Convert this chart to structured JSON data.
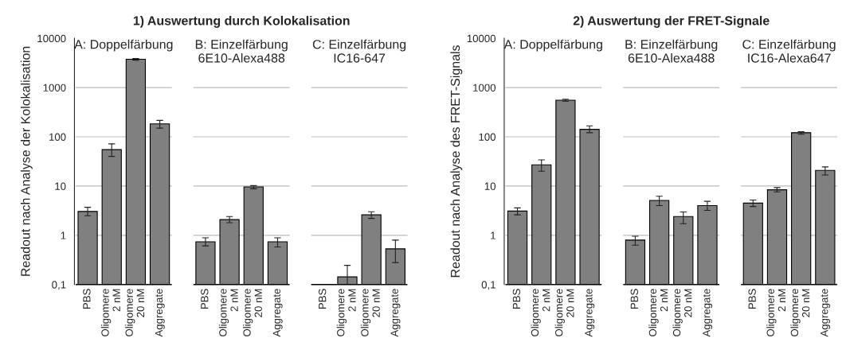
{
  "chart_data": [
    {
      "type": "bar",
      "title": "1) Auswertung durch Kolokalisation",
      "ylabel": "Readout nach Analyse der Kolokalisation",
      "categories": [
        "PBS",
        "Oligomere\n2 nM",
        "Oligomere\n20 nM",
        "Aggregate",
        "PBS",
        "Oligomere\n2 nM",
        "Oligomere\n20 nM",
        "Aggregate",
        "PBS",
        "Oligomere\n2 nM",
        "Oligomere\n20 nM",
        "Aggregate"
      ],
      "series": [
        {
          "color": "#808080",
          "values": [
            3.05,
            55,
            3760,
            183,
            0.74,
            2.08,
            9.6,
            0.74,
            null,
            0.143,
            2.6,
            0.53
          ],
          "errors": [
            [
              2.5,
              3.7
            ],
            [
              40,
              72
            ],
            [
              3600,
              3900
            ],
            [
              150,
              215
            ],
            [
              0.61,
              0.89
            ],
            [
              1.8,
              2.4
            ],
            [
              8.8,
              10.2
            ],
            [
              0.58,
              0.89
            ],
            null,
            [
              0.1,
              0.245
            ],
            [
              2.2,
              3.0
            ],
            [
              0.28,
              0.8
            ]
          ]
        }
      ],
      "annotations": [
        "A: Doppelfärbung",
        "B: Einzelfärbung\n6E10-Alexa488",
        "C: Einzelfärbung\nIC16-647"
      ],
      "log": "y",
      "ylim": [
        0.1,
        10000
      ],
      "yticks": [
        {
          "value": 0.1,
          "label": "0,1"
        },
        1,
        10,
        100,
        1000,
        10000
      ],
      "grid": "y",
      "legend": false
    },
    {
      "type": "bar",
      "title": "2) Auswertung der FRET-Signale",
      "ylabel": "Readout nach Analyse des FRET-Signals",
      "categories": [
        "PBS",
        "Oligomere\n2 nM",
        "Oligomere\n20 nM",
        "Aggregate",
        "PBS",
        "Oligomere\n2 nM",
        "Oligomere\n20 nM",
        "Aggregate",
        "PBS",
        "Oligomere\n2 nM",
        "Oligomere\n20 nM",
        "Aggregate"
      ],
      "series": [
        {
          "color": "#808080",
          "values": [
            3.1,
            27,
            552,
            142,
            0.8,
            5.1,
            2.4,
            4.0,
            4.5,
            8.4,
            121,
            20.8
          ],
          "errors": [
            [
              2.6,
              3.6
            ],
            [
              20,
              34
            ],
            [
              530,
              580
            ],
            [
              121,
              167
            ],
            [
              0.63,
              0.96
            ],
            [
              4.0,
              6.2
            ],
            [
              1.72,
              2.97
            ],
            [
              3.2,
              4.9
            ],
            [
              3.85,
              5.2
            ],
            [
              7.6,
              9.3
            ],
            [
              113,
              127
            ],
            [
              16.8,
              24.5
            ]
          ]
        }
      ],
      "annotations": [
        "A: Doppelfärbung",
        "B: Einzelfärbung\n6E10-Alexa488",
        "C: Einzelfärbung\nIC16-Alexa647"
      ],
      "log": "y",
      "ylim": [
        0.1,
        10000
      ],
      "yticks": [
        {
          "value": 0.1,
          "label": "0,1"
        },
        1,
        10,
        100,
        1000,
        10000
      ],
      "grid": "y",
      "legend": false
    }
  ]
}
